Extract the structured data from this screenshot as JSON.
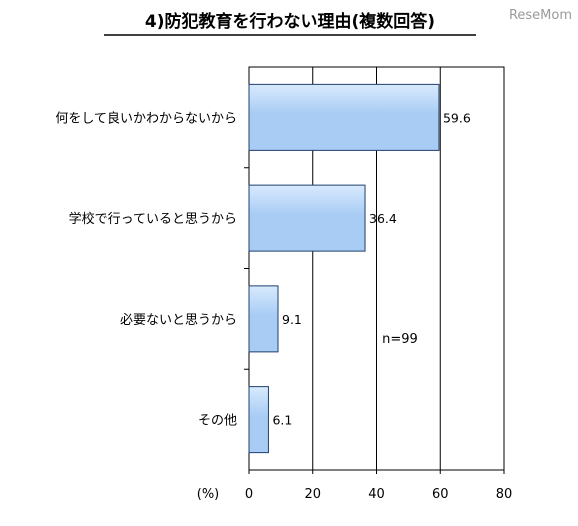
{
  "chart_data": {
    "type": "bar",
    "orientation": "horizontal",
    "title": "4)防犯教育を行わない理由(複数回答)",
    "categories": [
      "何をして良いかわからないから",
      "学校で行っていると思うから",
      "必要ないと思うから",
      "その他"
    ],
    "values": [
      59.6,
      36.4,
      9.1,
      6.1
    ],
    "value_labels": [
      "59.6",
      "36.4",
      "9.1",
      "6.1"
    ],
    "xlim": [
      0,
      80
    ],
    "x_ticks": [
      0,
      20,
      40,
      60,
      80
    ],
    "x_tick_labels": [
      "0",
      "20",
      "40",
      "60",
      "80"
    ],
    "x_unit": "(%)",
    "annotation": "n=99",
    "grid": "vertical",
    "legend": "none",
    "bar_color": "#a8ccf4",
    "bar_color_light": "#d8eafd",
    "bar_edge": "#1f3f6f"
  },
  "watermark": "ReseMom"
}
